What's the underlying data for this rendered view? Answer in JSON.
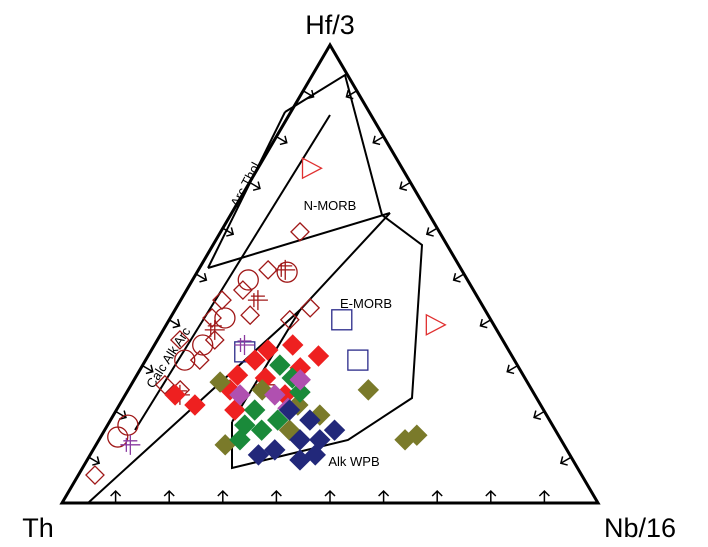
{
  "chart_data": {
    "type": "ternary",
    "corners": {
      "top": "Hf/3",
      "left": "Th",
      "right": "Nb/16"
    },
    "field_labels": [
      "Arc Thol.",
      "N-MORB",
      "E-MORB",
      "Calc Alk Arc",
      "Alk WPB"
    ],
    "series": [
      {
        "color": "#e03030",
        "marker": "triangle",
        "filled": false,
        "points": [
          [
            16.9,
            73.1,
            10.0
          ],
          [
            10.9,
            38.9,
            50.2
          ]
        ]
      },
      {
        "color": "#2a2a8a",
        "marker": "square",
        "filled": false,
        "points": [
          [
            27.8,
            40.0,
            32.2
          ],
          [
            29.2,
            31.2,
            39.6
          ],
          [
            49.4,
            33.0,
            17.6
          ]
        ]
      },
      {
        "color": "#a01818",
        "marker": "diamond",
        "filled": false,
        "points": [
          [
            26.0,
            59.2,
            14.8
          ],
          [
            36.1,
            50.9,
            13.0
          ],
          [
            43.0,
            46.5,
            10.5
          ],
          [
            48.0,
            44.3,
            7.7
          ],
          [
            51.8,
            40.4,
            7.8
          ],
          [
            37.5,
            40.0,
            22.5
          ],
          [
            32.4,
            42.6,
            25.0
          ],
          [
            44.4,
            41.0,
            14.6
          ],
          [
            60.2,
            35.6,
            4.2
          ],
          [
            58.7,
            31.2,
            10.1
          ],
          [
            65.6,
            24.7,
            9.7
          ],
          [
            67.9,
            25.8,
            6.3
          ],
          [
            90.8,
            6.1,
            3.1
          ],
          [
            53.7,
            35.6,
            10.7
          ]
        ]
      },
      {
        "color": "#a01818",
        "marker": "circle",
        "filled": false,
        "points": [
          [
            32.8,
            50.4,
            16.8
          ],
          [
            40.9,
            48.7,
            10.4
          ],
          [
            49.4,
            40.4,
            10.2
          ],
          [
            56.5,
            34.5,
            9.0
          ],
          [
            61.5,
            31.2,
            7.3
          ],
          [
            82.4,
            14.4,
            3.2
          ],
          [
            79.2,
            17.0,
            3.8
          ]
        ]
      },
      {
        "color": "#a01818",
        "marker": "plus",
        "filled": false,
        "points": [
          [
            32.9,
            50.9,
            16.2
          ],
          [
            41.3,
            44.3,
            14.4
          ],
          [
            52.6,
            37.8,
            9.6
          ],
          [
            66.2,
            23.6,
            10.2
          ],
          [
            49.2,
            25.8,
            25.0
          ]
        ]
      },
      {
        "color": "#8a3aa0",
        "marker": "plus",
        "filled": false,
        "points": [
          [
            80.9,
            12.7,
            6.4
          ],
          [
            48.7,
            34.5,
            16.8
          ]
        ]
      },
      {
        "color": "#ee2020",
        "marker": "diamond",
        "filled": true,
        "points": [
          [
            36.1,
            32.1,
            31.8
          ],
          [
            39.7,
            34.5,
            25.8
          ],
          [
            44.9,
            33.4,
            21.7
          ],
          [
            53.3,
            27.9,
            18.8
          ],
          [
            56.3,
            24.7,
            19.0
          ],
          [
            57.6,
            20.3,
            22.1
          ],
          [
            64.5,
            21.4,
            14.1
          ],
          [
            67.1,
            23.6,
            9.3
          ],
          [
            48.4,
            27.3,
            24.3
          ],
          [
            46.6,
            23.6,
            29.8
          ],
          [
            40.8,
            29.5,
            29.7
          ],
          [
            48.4,
            31.2,
            20.4
          ]
        ]
      },
      {
        "color": "#7a7a2a",
        "marker": "diamond",
        "filled": true,
        "points": [
          [
            57.3,
            26.4,
            16.3
          ],
          [
            30.5,
            24.7,
            44.8
          ],
          [
            29.1,
            13.8,
            57.1
          ],
          [
            26.4,
            14.8,
            58.8
          ],
          [
            63.2,
            12.7,
            24.1
          ],
          [
            49.6,
            15.9,
            34.5
          ],
          [
            42.3,
            19.2,
            38.5
          ],
          [
            45.3,
            21.4,
            33.3
          ],
          [
            50.3,
            24.7,
            25.0
          ]
        ]
      },
      {
        "color": "#1a8a3a",
        "marker": "diamond",
        "filled": true,
        "points": [
          [
            44.3,
            30.1,
            25.6
          ],
          [
            43.4,
            27.3,
            29.3
          ],
          [
            53.9,
            20.3,
            25.8
          ],
          [
            59.9,
            13.8,
            26.3
          ],
          [
            54.8,
            15.9,
            29.3
          ],
          [
            50.7,
            18.1,
            31.2
          ],
          [
            57.4,
            17.0,
            25.6
          ],
          [
            43.5,
            24.2,
            32.3
          ]
        ]
      },
      {
        "color": "#b050b0",
        "marker": "diamond",
        "filled": true,
        "points": [
          [
            48.5,
            23.6,
            27.9
          ],
          [
            55.0,
            23.6,
            21.4
          ],
          [
            42.1,
            26.9,
            31.0
          ],
          [
            47.5,
            20.7,
            31.8
          ]
        ]
      },
      {
        "color": "#22287a",
        "marker": "diamond",
        "filled": true,
        "points": [
          [
            47.4,
            20.3,
            32.3
          ],
          [
            44.7,
            18.1,
            37.2
          ],
          [
            48.7,
            13.8,
            37.5
          ],
          [
            54.5,
            11.6,
            33.9
          ],
          [
            45.0,
            13.8,
            41.2
          ],
          [
            47.5,
            10.5,
            42.0
          ],
          [
            58.1,
            10.5,
            31.4
          ],
          [
            41.2,
            15.9,
            42.9
          ],
          [
            50.9,
            9.4,
            39.7
          ]
        ]
      }
    ]
  }
}
